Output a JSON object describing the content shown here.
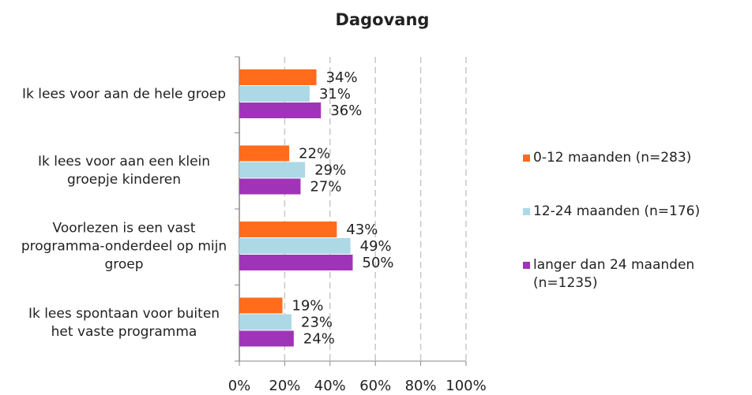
{
  "chart_data": {
    "type": "hbar",
    "title": "Dagovang",
    "categories": [
      "Ik lees voor aan de hele groep",
      "Ik lees voor aan een klein groepje kinderen",
      "Voorlezen is een vast programma-onderdeel op mijn groep",
      "Ik lees spontaan voor buiten het vaste programma"
    ],
    "series": [
      {
        "name": "0-12 maanden (n=283)",
        "color": "#ff6c1c",
        "values": [
          34,
          22,
          43,
          19
        ],
        "value_labels": [
          "34%",
          "22%",
          "43%",
          "19%"
        ]
      },
      {
        "name": "12-24 maanden (n=176)",
        "color": "#add8e6",
        "values": [
          31,
          29,
          49,
          23
        ],
        "value_labels": [
          "31%",
          "29%",
          "49%",
          "23%"
        ]
      },
      {
        "name": "langer dan 24 maanden (n=1235)",
        "color": "#a034b8",
        "values": [
          36,
          27,
          50,
          24
        ],
        "value_labels": [
          "36%",
          "27%",
          "50%",
          "24%"
        ]
      }
    ],
    "xlim": [
      0,
      100
    ],
    "xticks": [
      {
        "value": 0,
        "label": "0%"
      },
      {
        "value": 20,
        "label": "20%"
      },
      {
        "value": 40,
        "label": "40%"
      },
      {
        "value": 60,
        "label": "60%"
      },
      {
        "value": 80,
        "label": "80%"
      },
      {
        "value": 100,
        "label": "100%"
      }
    ],
    "grid": true,
    "legend": "right"
  }
}
